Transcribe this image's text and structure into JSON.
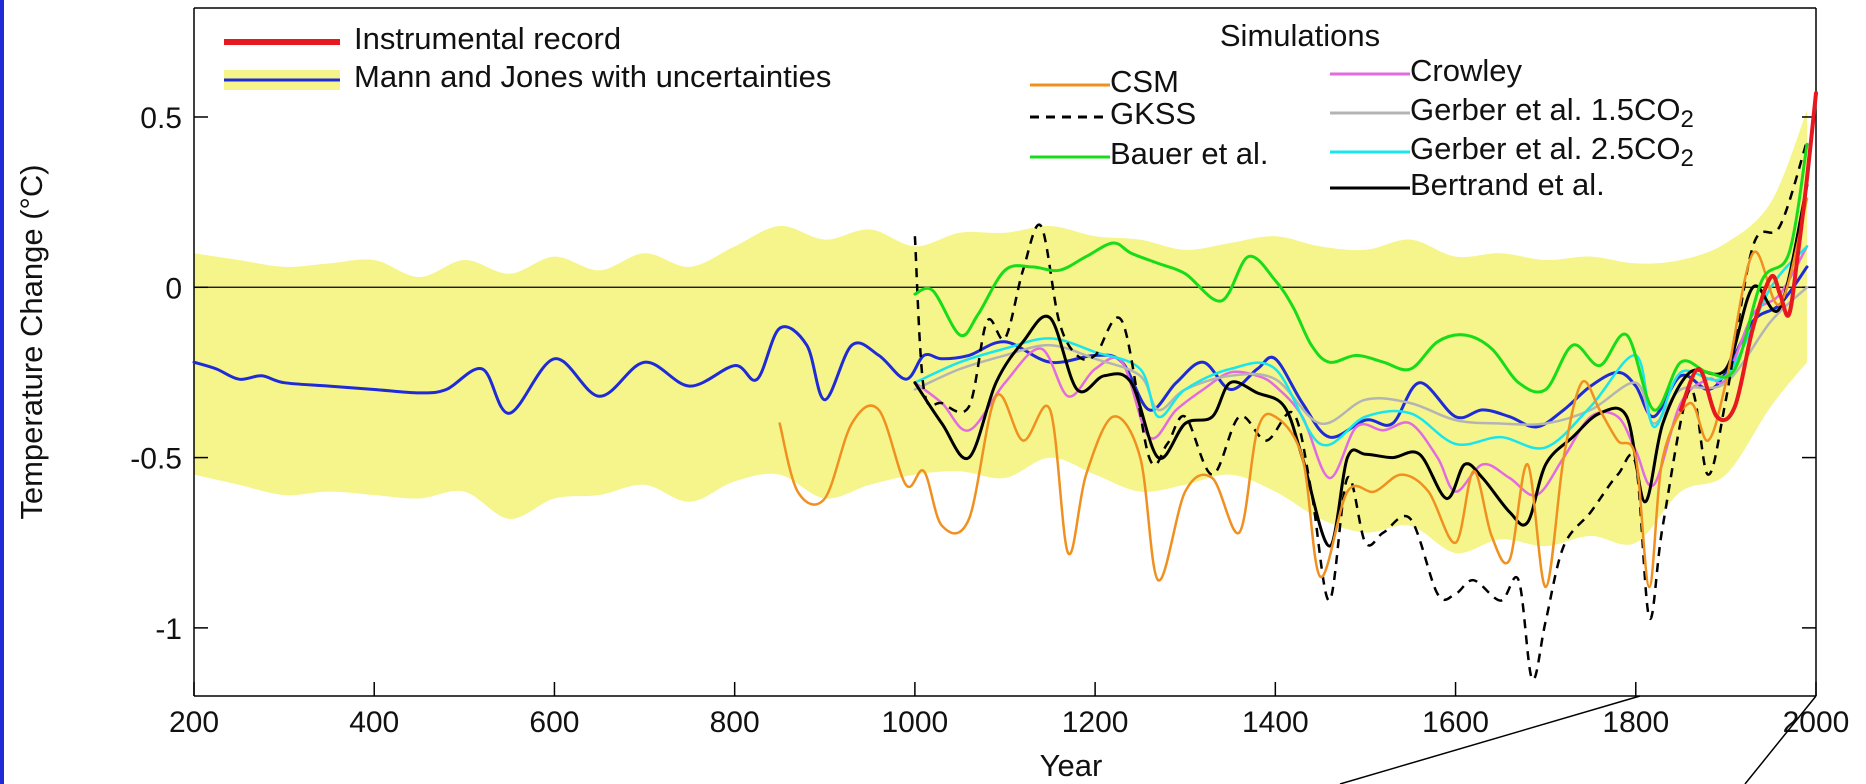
{
  "chart_data": {
    "type": "line",
    "xlabel": "Year",
    "ylabel": "Temperature Change (°C)",
    "xlim": [
      200,
      2000
    ],
    "ylim": [
      -1.2,
      0.82
    ],
    "x_ticks": [
      200,
      400,
      600,
      800,
      1000,
      1200,
      1400,
      1600,
      1800,
      2000
    ],
    "y_ticks": [
      {
        "value": 0.5,
        "label": "0.5"
      },
      {
        "value": 0,
        "label": "0"
      },
      {
        "value": -0.5,
        "label": "-0.5"
      },
      {
        "value": -1,
        "label": "-1"
      }
    ],
    "zero_line": true,
    "grid": false,
    "legend_titles": {
      "simulations": "Simulations"
    },
    "uncertainty_band": {
      "name": "Mann and Jones with uncertainties",
      "color": "#f5f58c",
      "x": [
        200,
        250,
        300,
        350,
        400,
        450,
        500,
        550,
        600,
        650,
        700,
        750,
        800,
        850,
        900,
        950,
        1000,
        1050,
        1100,
        1150,
        1200,
        1250,
        1300,
        1350,
        1400,
        1450,
        1500,
        1550,
        1600,
        1650,
        1700,
        1750,
        1800,
        1850,
        1900,
        1950,
        1990
      ],
      "upper": [
        0.1,
        0.08,
        0.06,
        0.07,
        0.08,
        0.03,
        0.08,
        0.04,
        0.09,
        0.05,
        0.1,
        0.06,
        0.12,
        0.18,
        0.14,
        0.17,
        0.12,
        0.16,
        0.16,
        0.18,
        0.15,
        0.14,
        0.11,
        0.13,
        0.15,
        0.12,
        0.11,
        0.14,
        0.09,
        0.1,
        0.08,
        0.09,
        0.07,
        0.08,
        0.13,
        0.25,
        0.52
      ],
      "lower": [
        -0.55,
        -0.58,
        -0.61,
        -0.6,
        -0.61,
        -0.62,
        -0.6,
        -0.68,
        -0.62,
        -0.61,
        -0.58,
        -0.63,
        -0.57,
        -0.55,
        -0.62,
        -0.58,
        -0.55,
        -0.54,
        -0.56,
        -0.5,
        -0.55,
        -0.6,
        -0.58,
        -0.55,
        -0.6,
        -0.68,
        -0.72,
        -0.7,
        -0.78,
        -0.74,
        -0.76,
        -0.73,
        -0.75,
        -0.6,
        -0.55,
        -0.35,
        -0.22
      ]
    },
    "series": [
      {
        "name": "Mann and Jones with uncertainties",
        "color": "#1f2bd6",
        "width": 3,
        "dash": "",
        "x": [
          200,
          225,
          250,
          275,
          300,
          350,
          400,
          450,
          480,
          520,
          550,
          600,
          650,
          700,
          750,
          800,
          825,
          850,
          880,
          900,
          930,
          960,
          990,
          1010,
          1030,
          1060,
          1100,
          1150,
          1200,
          1230,
          1260,
          1290,
          1320,
          1350,
          1380,
          1400,
          1430,
          1460,
          1500,
          1530,
          1560,
          1600,
          1630,
          1660,
          1690,
          1720,
          1750,
          1780,
          1800,
          1820,
          1850,
          1880,
          1900,
          1930,
          1960,
          1990
        ],
        "y": [
          -0.22,
          -0.24,
          -0.27,
          -0.26,
          -0.28,
          -0.29,
          -0.3,
          -0.31,
          -0.3,
          -0.24,
          -0.37,
          -0.21,
          -0.32,
          -0.22,
          -0.29,
          -0.23,
          -0.27,
          -0.12,
          -0.17,
          -0.33,
          -0.17,
          -0.2,
          -0.27,
          -0.2,
          -0.21,
          -0.2,
          -0.16,
          -0.22,
          -0.2,
          -0.22,
          -0.36,
          -0.28,
          -0.22,
          -0.3,
          -0.24,
          -0.21,
          -0.34,
          -0.44,
          -0.39,
          -0.4,
          -0.28,
          -0.38,
          -0.36,
          -0.38,
          -0.41,
          -0.36,
          -0.29,
          -0.25,
          -0.29,
          -0.38,
          -0.26,
          -0.3,
          -0.25,
          -0.1,
          -0.05,
          0.06
        ]
      },
      {
        "name": "Crowley",
        "color": "#e26be2",
        "width": 2.5,
        "dash": "",
        "x": [
          1000,
          1030,
          1060,
          1100,
          1140,
          1170,
          1200,
          1230,
          1260,
          1290,
          1320,
          1350,
          1380,
          1400,
          1430,
          1460,
          1490,
          1520,
          1550,
          1580,
          1600,
          1630,
          1660,
          1690,
          1720,
          1750,
          1780,
          1800,
          1820,
          1850,
          1880,
          1900,
          1930,
          1960,
          1990
        ],
        "y": [
          -0.28,
          -0.34,
          -0.42,
          -0.28,
          -0.18,
          -0.32,
          -0.24,
          -0.22,
          -0.44,
          -0.36,
          -0.3,
          -0.25,
          -0.26,
          -0.29,
          -0.38,
          -0.56,
          -0.41,
          -0.42,
          -0.4,
          -0.5,
          -0.6,
          -0.52,
          -0.56,
          -0.61,
          -0.5,
          -0.38,
          -0.38,
          -0.48,
          -0.58,
          -0.34,
          -0.27,
          -0.27,
          -0.08,
          -0.02,
          0.12
        ]
      },
      {
        "name": "Gerber et al. 1.5CO2",
        "color": "#b4b4b4",
        "width": 2.5,
        "dash": "",
        "x": [
          1000,
          1050,
          1100,
          1150,
          1200,
          1250,
          1270,
          1300,
          1350,
          1400,
          1450,
          1500,
          1550,
          1600,
          1650,
          1700,
          1750,
          1800,
          1820,
          1850,
          1900,
          1950,
          1990
        ],
        "y": [
          -0.3,
          -0.24,
          -0.2,
          -0.17,
          -0.21,
          -0.26,
          -0.36,
          -0.3,
          -0.26,
          -0.27,
          -0.4,
          -0.33,
          -0.34,
          -0.39,
          -0.4,
          -0.4,
          -0.36,
          -0.28,
          -0.4,
          -0.3,
          -0.28,
          -0.1,
          0.0
        ]
      },
      {
        "name": "Gerber et al. 2.5CO2",
        "color": "#19e6ec",
        "width": 2.5,
        "dash": "",
        "x": [
          1000,
          1050,
          1100,
          1150,
          1200,
          1250,
          1270,
          1300,
          1350,
          1400,
          1450,
          1500,
          1550,
          1600,
          1650,
          1700,
          1750,
          1800,
          1820,
          1850,
          1900,
          1950,
          1990
        ],
        "y": [
          -0.28,
          -0.22,
          -0.18,
          -0.15,
          -0.19,
          -0.24,
          -0.38,
          -0.3,
          -0.24,
          -0.24,
          -0.46,
          -0.38,
          -0.37,
          -0.46,
          -0.44,
          -0.47,
          -0.35,
          -0.2,
          -0.41,
          -0.25,
          -0.26,
          0.0,
          0.12
        ]
      },
      {
        "name": "Bertrand et al.",
        "color": "#000000",
        "width": 3,
        "dash": "",
        "x": [
          1000,
          1030,
          1060,
          1090,
          1120,
          1150,
          1180,
          1210,
          1240,
          1270,
          1300,
          1330,
          1350,
          1380,
          1410,
          1430,
          1460,
          1480,
          1500,
          1530,
          1560,
          1590,
          1610,
          1630,
          1660,
          1680,
          1700,
          1730,
          1760,
          1790,
          1810,
          1830,
          1860,
          1900,
          1930,
          1960,
          1990
        ],
        "y": [
          -0.28,
          -0.4,
          -0.5,
          -0.28,
          -0.16,
          -0.09,
          -0.3,
          -0.26,
          -0.28,
          -0.5,
          -0.4,
          -0.38,
          -0.28,
          -0.31,
          -0.35,
          -0.5,
          -0.76,
          -0.5,
          -0.49,
          -0.5,
          -0.49,
          -0.62,
          -0.52,
          -0.56,
          -0.66,
          -0.69,
          -0.52,
          -0.44,
          -0.37,
          -0.38,
          -0.63,
          -0.4,
          -0.25,
          -0.24,
          0.0,
          -0.06,
          0.3
        ]
      },
      {
        "name": "GKSS",
        "color": "#000000",
        "width": 2.5,
        "dash": "9 7",
        "x": [
          1000,
          1010,
          1030,
          1060,
          1080,
          1100,
          1120,
          1140,
          1160,
          1180,
          1200,
          1230,
          1260,
          1280,
          1300,
          1330,
          1360,
          1390,
          1420,
          1440,
          1460,
          1480,
          1500,
          1520,
          1550,
          1580,
          1600,
          1620,
          1650,
          1670,
          1685,
          1700,
          1720,
          1750,
          1780,
          1800,
          1815,
          1830,
          1860,
          1880,
          1900,
          1930,
          1960,
          1990
        ],
        "y": [
          0.15,
          -0.3,
          -0.34,
          -0.35,
          -0.1,
          -0.15,
          0.05,
          0.18,
          -0.1,
          -0.2,
          -0.2,
          -0.1,
          -0.5,
          -0.46,
          -0.38,
          -0.55,
          -0.38,
          -0.45,
          -0.37,
          -0.6,
          -0.92,
          -0.56,
          -0.75,
          -0.72,
          -0.68,
          -0.9,
          -0.9,
          -0.86,
          -0.92,
          -0.86,
          -1.15,
          -0.98,
          -0.76,
          -0.66,
          -0.55,
          -0.52,
          -0.97,
          -0.7,
          -0.3,
          -0.55,
          -0.33,
          0.12,
          0.18,
          0.43
        ]
      },
      {
        "name": "CSM",
        "color": "#f09020",
        "width": 2.5,
        "dash": "",
        "x": [
          850,
          870,
          900,
          930,
          960,
          990,
          1010,
          1030,
          1060,
          1090,
          1120,
          1150,
          1170,
          1190,
          1220,
          1250,
          1270,
          1300,
          1330,
          1360,
          1380,
          1400,
          1430,
          1450,
          1480,
          1510,
          1540,
          1570,
          1600,
          1620,
          1640,
          1660,
          1680,
          1700,
          1720,
          1740,
          1760,
          1780,
          1800,
          1815,
          1830,
          1860,
          1880,
          1900,
          1930,
          1960,
          1990
        ],
        "y": [
          -0.4,
          -0.6,
          -0.62,
          -0.4,
          -0.36,
          -0.58,
          -0.54,
          -0.7,
          -0.68,
          -0.32,
          -0.45,
          -0.36,
          -0.78,
          -0.55,
          -0.38,
          -0.5,
          -0.86,
          -0.6,
          -0.56,
          -0.72,
          -0.42,
          -0.38,
          -0.5,
          -0.85,
          -0.6,
          -0.6,
          -0.55,
          -0.6,
          -0.75,
          -0.54,
          -0.73,
          -0.8,
          -0.52,
          -0.88,
          -0.5,
          -0.28,
          -0.36,
          -0.45,
          -0.5,
          -0.88,
          -0.5,
          -0.34,
          -0.45,
          -0.28,
          0.1,
          -0.05,
          0.26
        ]
      },
      {
        "name": "Bauer et al.",
        "color": "#19dc19",
        "width": 3,
        "dash": "",
        "x": [
          1000,
          1020,
          1050,
          1070,
          1100,
          1130,
          1160,
          1190,
          1220,
          1240,
          1270,
          1300,
          1340,
          1370,
          1400,
          1420,
          1440,
          1460,
          1490,
          1520,
          1550,
          1580,
          1610,
          1640,
          1670,
          1700,
          1730,
          1760,
          1790,
          1820,
          1850,
          1880,
          1910,
          1940,
          1970,
          1990
        ],
        "y": [
          -0.02,
          -0.01,
          -0.14,
          -0.08,
          0.05,
          0.06,
          0.05,
          0.09,
          0.13,
          0.1,
          0.07,
          0.04,
          -0.04,
          0.09,
          0.02,
          -0.06,
          -0.17,
          -0.22,
          -0.2,
          -0.22,
          -0.24,
          -0.16,
          -0.14,
          -0.18,
          -0.28,
          -0.3,
          -0.17,
          -0.23,
          -0.14,
          -0.36,
          -0.22,
          -0.25,
          -0.24,
          0.02,
          0.1,
          0.42
        ]
      },
      {
        "name": "Instrumental record",
        "color": "#e81820",
        "width": 4,
        "dash": "",
        "x": [
          1850,
          1870,
          1890,
          1910,
          1930,
          1950,
          1960,
          1970,
          1980,
          1990,
          2000
        ],
        "y": [
          -0.36,
          -0.24,
          -0.38,
          -0.35,
          -0.12,
          0.03,
          -0.02,
          -0.08,
          0.1,
          0.32,
          0.57
        ]
      }
    ],
    "legend": [
      {
        "label": "Instrumental record",
        "color": "#e81820",
        "dash": "",
        "band": false
      },
      {
        "label": "Mann and Jones with uncertainties",
        "color": "#1f2bd6",
        "dash": "",
        "band": true
      },
      {
        "label": "CSM",
        "color": "#f09020",
        "dash": "",
        "band": false
      },
      {
        "label": "GKSS",
        "color": "#000000",
        "dash": "9 7",
        "band": false
      },
      {
        "label": "Bauer et al.",
        "color": "#19dc19",
        "dash": "",
        "band": false
      },
      {
        "label": "Crowley",
        "color": "#e26be2",
        "dash": "",
        "band": false
      },
      {
        "label": "Gerber et al. 1.5CO",
        "sub": "2",
        "color": "#b4b4b4",
        "dash": "",
        "band": false
      },
      {
        "label": "Gerber et al. 2.5CO",
        "sub": "2",
        "color": "#19e6ec",
        "dash": "",
        "band": false
      },
      {
        "label": "Bertrand et al.",
        "color": "#000000",
        "dash": "",
        "band": false
      }
    ]
  }
}
